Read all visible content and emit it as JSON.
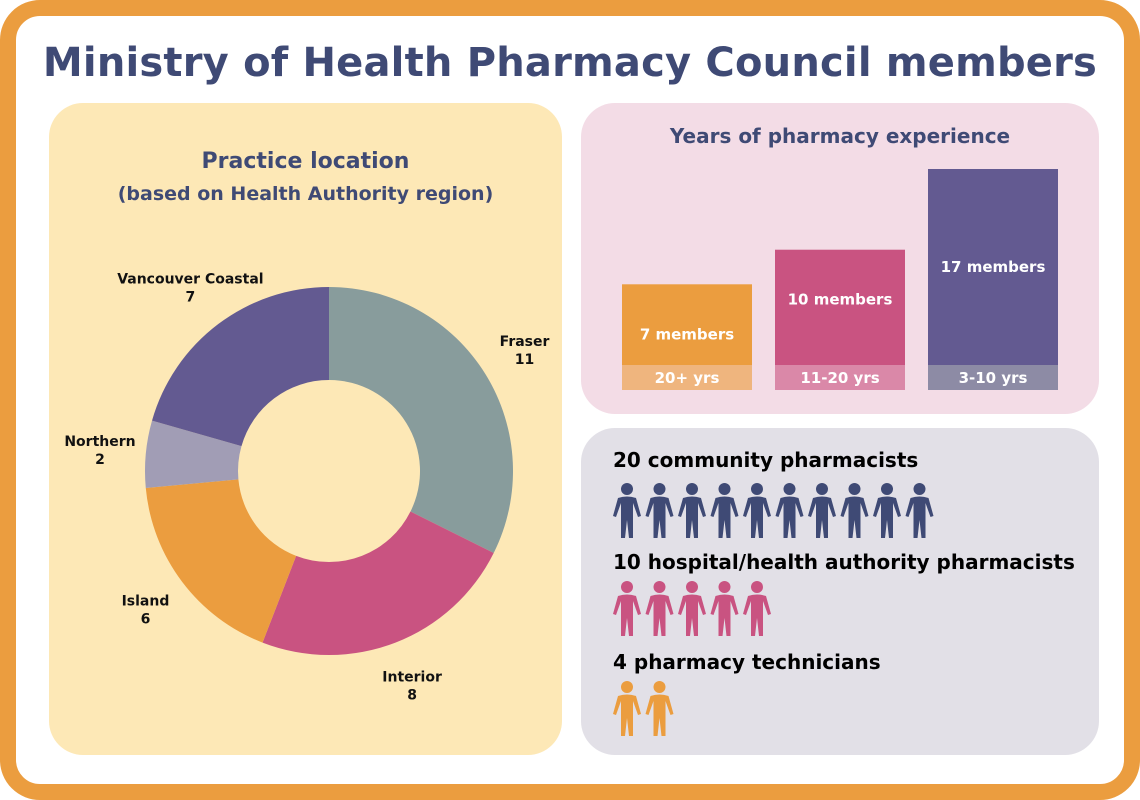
{
  "title": "Ministry of Health Pharmacy Council members",
  "location": {
    "title": "Practice location",
    "subtitle": "(based on Health Authority region)"
  },
  "experience": {
    "title": "Years of pharmacy experience"
  },
  "roles": [
    {
      "label": "20 community pharmacists",
      "count": 20,
      "icons": 10,
      "color": "#3F4A75"
    },
    {
      "label": "10 hospital/health authority pharmacists",
      "count": 10,
      "icons": 5,
      "color": "#C95381"
    },
    {
      "label": "4 pharmacy technicians",
      "count": 4,
      "icons": 2,
      "color": "#EB9D3F"
    }
  ],
  "chart_data": [
    {
      "type": "pie",
      "title": "Practice location",
      "subtitle": "(based on Health Authority region)",
      "categories": [
        "Fraser",
        "Interior",
        "Island",
        "Northern",
        "Vancouver Coastal"
      ],
      "values": [
        11,
        8,
        6,
        2,
        7
      ],
      "colors": [
        "#889C9C",
        "#C95381",
        "#EB9D3F",
        "#A19DB5",
        "#635A91"
      ],
      "donut": true
    },
    {
      "type": "bar",
      "title": "Years of pharmacy experience",
      "categories": [
        "20+ yrs",
        "11-20 yrs",
        "3-10 yrs"
      ],
      "values": [
        7,
        10,
        17
      ],
      "value_labels": [
        "7 members",
        "10 members",
        "17 members"
      ],
      "colors": [
        "#EB9D3F",
        "#C95381",
        "#635A91"
      ],
      "label_colors": [
        "#EFB57E",
        "#DA88A8",
        "#8D8BA5"
      ]
    }
  ]
}
